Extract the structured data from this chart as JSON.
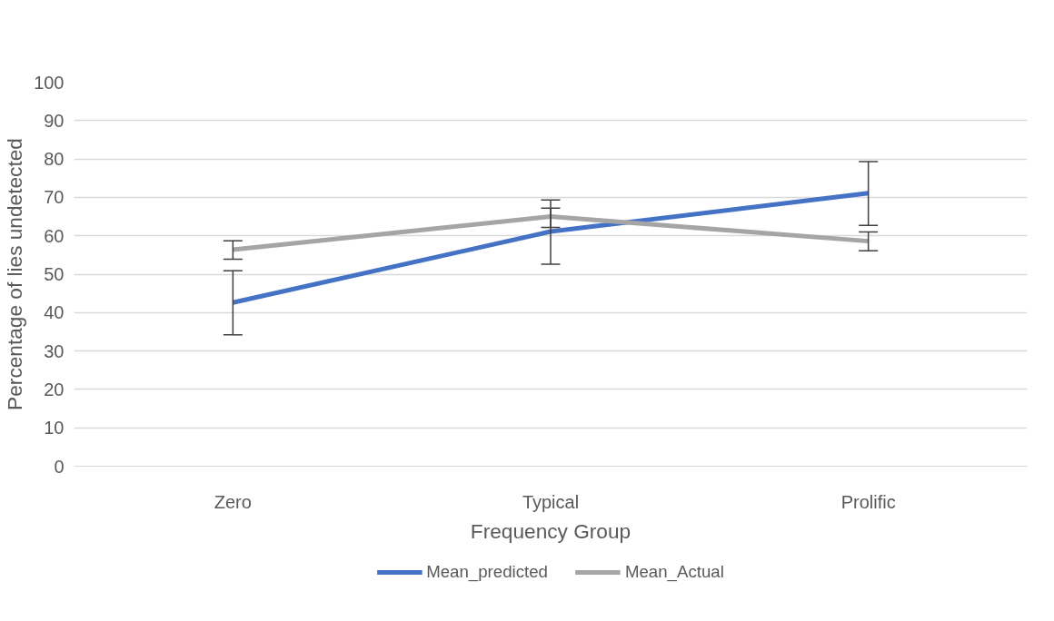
{
  "chart_data": {
    "type": "line",
    "xlabel": "Frequency Group",
    "ylabel": "Percentage of lies undetected",
    "categories": [
      "Zero",
      "Typical",
      "Prolific"
    ],
    "series": [
      {
        "name": "Mean_predicted",
        "color": "#4472c4",
        "values": [
          42.6,
          61.1,
          71.1
        ],
        "errors": [
          [
            34.2,
            50.9
          ],
          [
            52.6,
            67.2
          ],
          [
            62.7,
            79.3
          ]
        ]
      },
      {
        "name": "Mean_Actual",
        "color": "#a5a5a5",
        "values": [
          56.4,
          65.0,
          58.6
        ],
        "errors": [
          [
            53.9,
            58.7
          ],
          [
            62.2,
            69.3
          ],
          [
            56.1,
            61.0
          ]
        ]
      }
    ],
    "ylim": [
      0,
      100
    ],
    "yticks": [
      0,
      10,
      20,
      30,
      40,
      50,
      60,
      70,
      80,
      90,
      100
    ],
    "grid": "y",
    "legend": "bottom",
    "marker": "none",
    "line_style": "solid"
  }
}
